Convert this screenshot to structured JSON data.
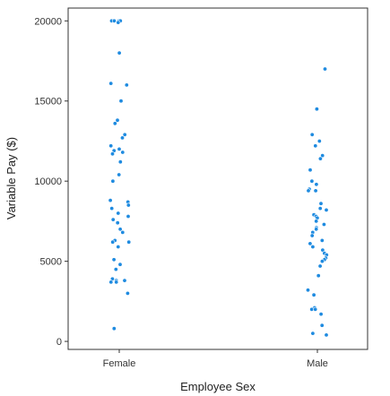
{
  "chart_data": {
    "type": "scatter",
    "title": "",
    "xlabel": "Employee Sex",
    "ylabel": "Variable Pay ($)",
    "categories": [
      "Female",
      "Male"
    ],
    "ylim": [
      -500,
      20800
    ],
    "yticks": [
      0,
      5000,
      10000,
      15000,
      20000
    ],
    "ytick_labels": [
      "0",
      "5000",
      "10000",
      "15000",
      "20000"
    ],
    "grid": false,
    "point_color": "#1f8be0",
    "series": [
      {
        "category": "Female",
        "values": [
          20000,
          20000,
          20000,
          20000,
          19900,
          18000,
          16100,
          16000,
          15000,
          13800,
          13600,
          12900,
          12700,
          12200,
          12000,
          11900,
          11800,
          11700,
          11200,
          10400,
          10000,
          8800,
          8700,
          8500,
          8300,
          8000,
          7800,
          7600,
          7400,
          7000,
          6800,
          6300,
          6200,
          6200,
          5900,
          5100,
          4800,
          4500,
          3900,
          3800,
          3800,
          3700,
          3700,
          3000,
          800
        ]
      },
      {
        "category": "Male",
        "values": [
          17000,
          14500,
          12900,
          12500,
          12200,
          11600,
          11400,
          10700,
          10000,
          9800,
          9500,
          9400,
          9400,
          8600,
          8300,
          8200,
          7900,
          7800,
          7700,
          7500,
          7300,
          7100,
          7000,
          6800,
          6600,
          6300,
          6100,
          5900,
          5700,
          5500,
          5400,
          5200,
          5100,
          5000,
          4700,
          4100,
          3200,
          2900,
          2100,
          2000,
          2000,
          1700,
          1000,
          500,
          400
        ]
      }
    ]
  }
}
